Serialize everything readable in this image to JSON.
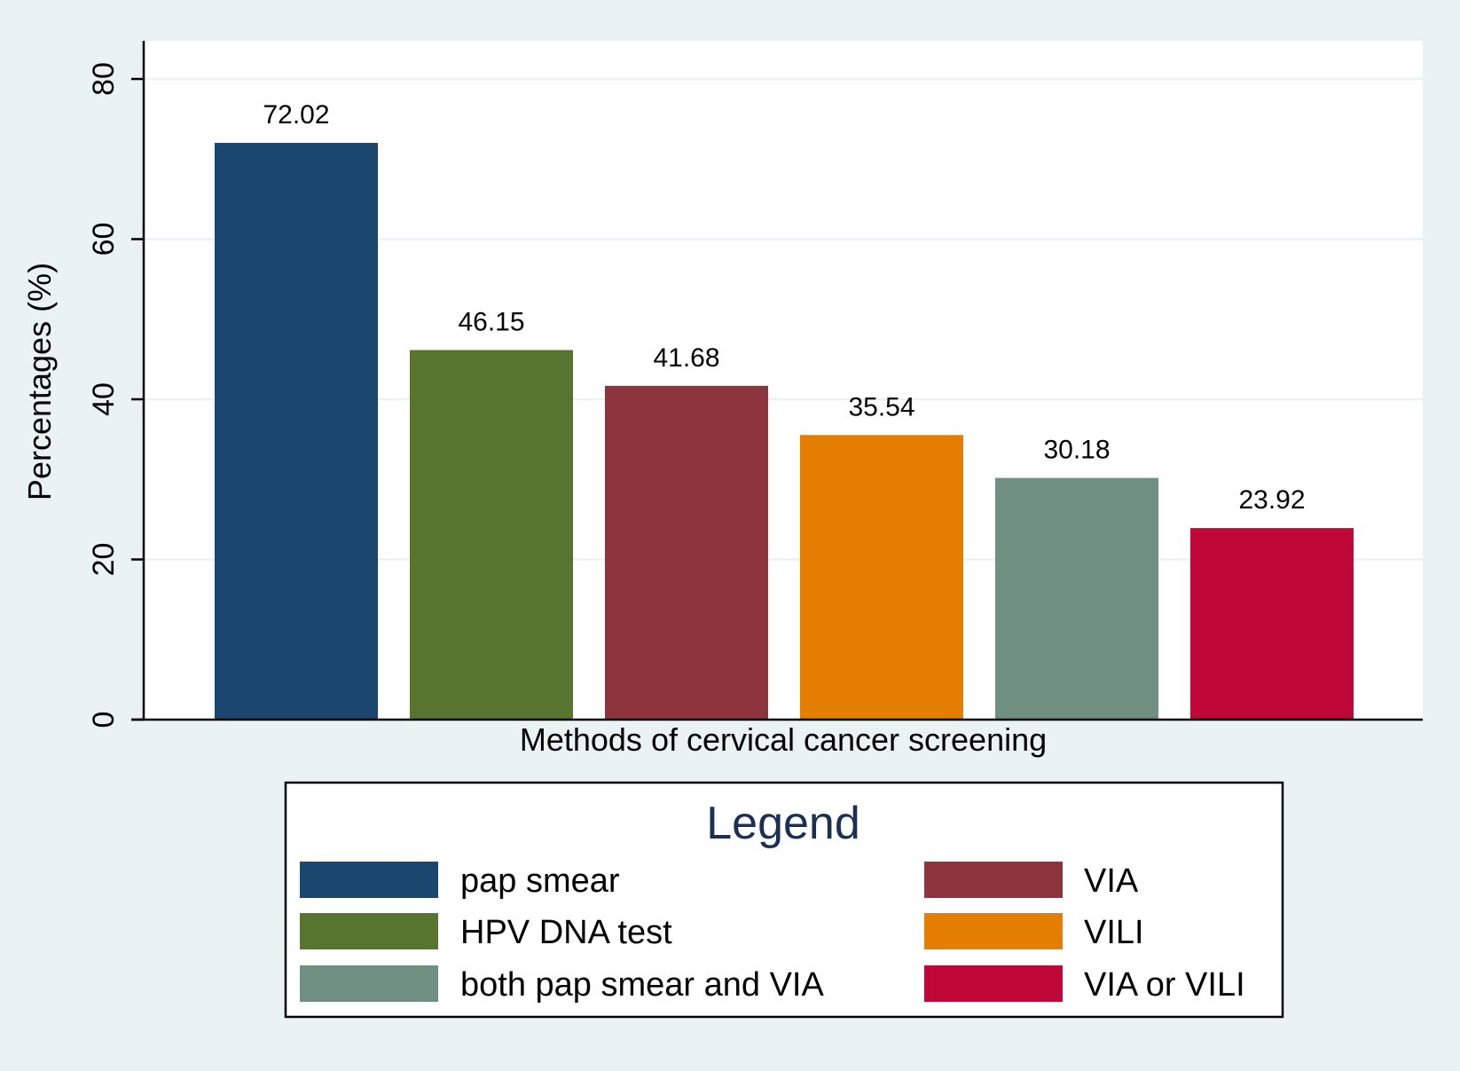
{
  "chart_data": {
    "type": "bar",
    "title": "",
    "xlabel": "Methods of cervical cancer screening",
    "ylabel": "Percentages (%)",
    "ylim": [
      0,
      85
    ],
    "yticks": [
      0,
      20,
      40,
      60,
      80
    ],
    "grid": true,
    "categories": [
      "pap smear",
      "HPV DNA test",
      "VIA",
      "VILI",
      "both pap smear and VIA",
      "VIA or VILI"
    ],
    "values": [
      72.02,
      46.15,
      41.68,
      35.54,
      30.18,
      23.92
    ],
    "value_labels": [
      "72.02",
      "46.15",
      "41.68",
      "35.54",
      "30.18",
      "23.92"
    ],
    "colors": [
      "#1b466d",
      "#58752f",
      "#8e343c",
      "#e47e02",
      "#6f8f81",
      "#c00838"
    ],
    "legend": {
      "title": "Legend",
      "placement": "bottom",
      "entries": [
        {
          "label": "pap smear",
          "color": "#1b466d"
        },
        {
          "label": "VIA",
          "color": "#8e343c"
        },
        {
          "label": "HPV DNA test",
          "color": "#58752f"
        },
        {
          "label": "VILI",
          "color": "#e47e02"
        },
        {
          "label": "both pap smear and VIA",
          "color": "#6f8f81"
        },
        {
          "label": "VIA or VILI",
          "color": "#c00838"
        }
      ]
    },
    "style": {
      "outer_background": "#eaf2f3",
      "plot_background": "#ffffff",
      "grid_color": "#eaf2f3",
      "axis_color": "#000000",
      "legend_title_color": "#1a2f54"
    }
  }
}
